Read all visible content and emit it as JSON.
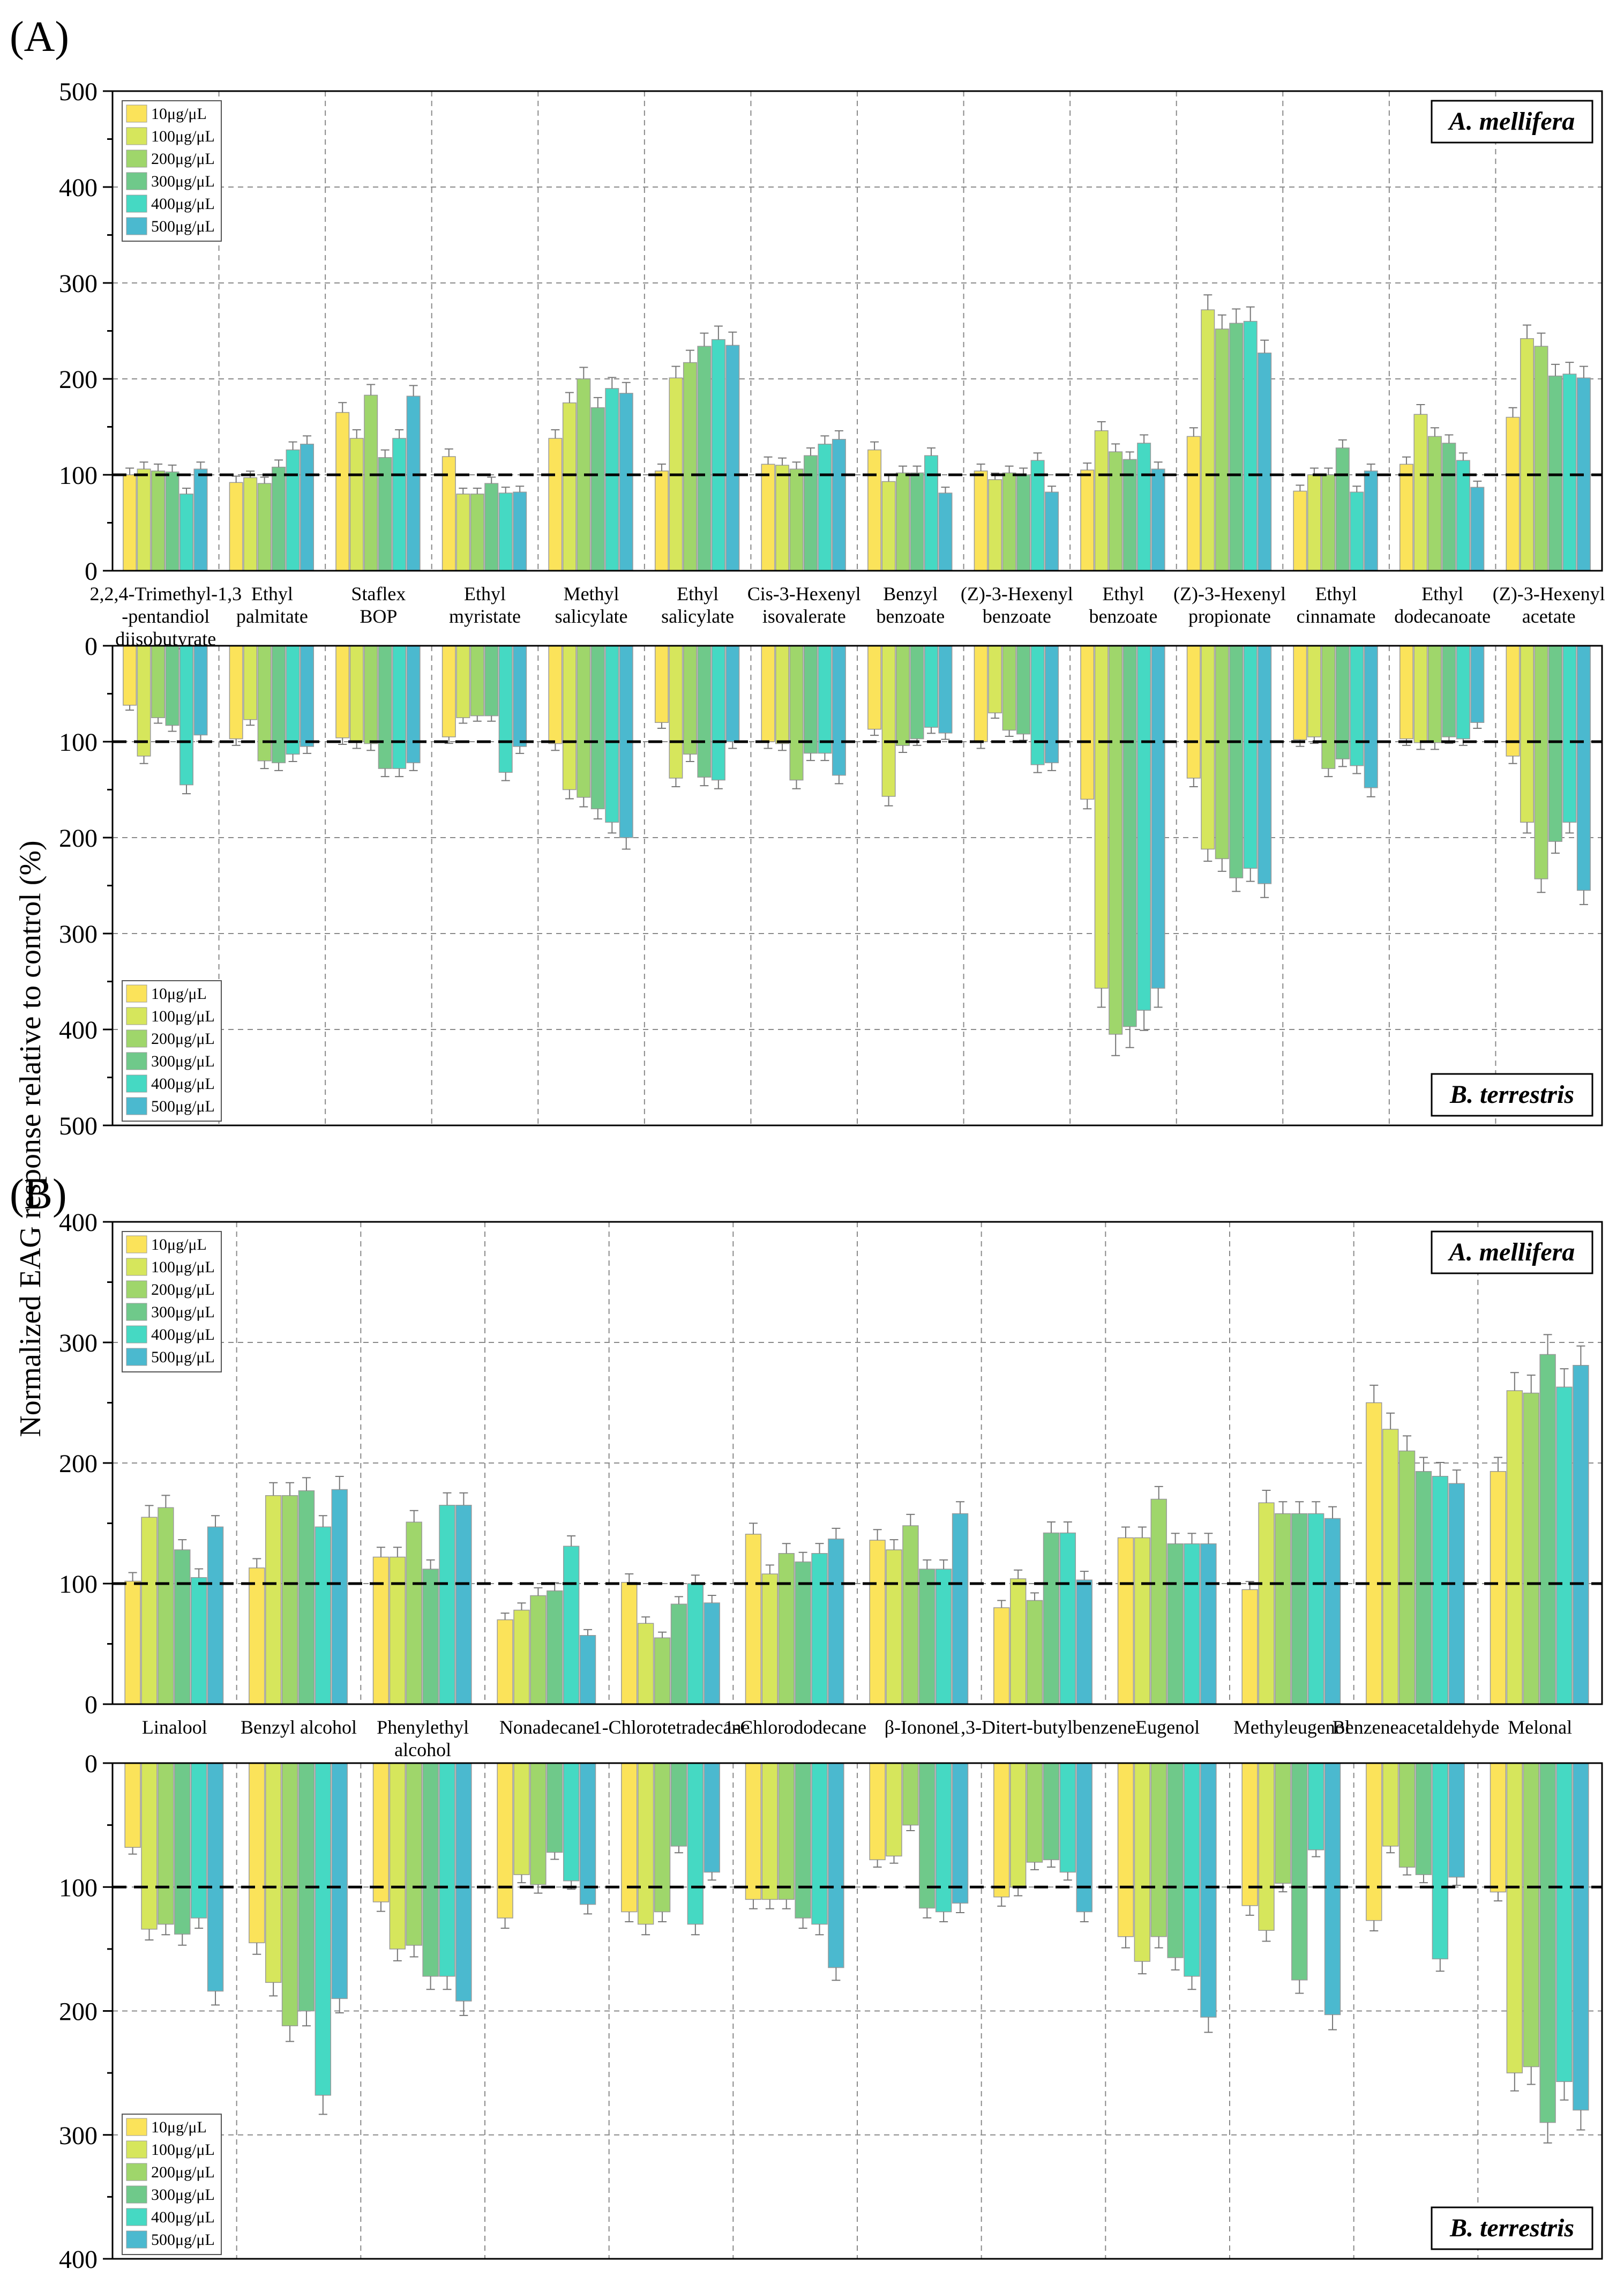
{
  "figure": {
    "ylabel": "Normalized EAG response relative to control (%)",
    "series": [
      "10μg/μL",
      "100μg/μL",
      "200μg/μL",
      "300μg/μL",
      "400μg/μL",
      "500μg/μL"
    ],
    "colors": [
      "#fbe35a",
      "#d6e65c",
      "#9fd66b",
      "#6fc98a",
      "#45d9c3",
      "#4bb9cf"
    ],
    "reference_line": 100
  },
  "chart_data": [
    {
      "type": "bar",
      "panel": "(A)",
      "species": "A. mellifera",
      "orientation": "up",
      "ylim": [
        0,
        500
      ],
      "yticks": [
        0,
        100,
        200,
        300,
        400,
        500
      ],
      "categories": [
        "2,2,4-Trimethyl-1,3\n-pentandiol\ndiisobutyrate",
        "Ethyl\npalmitate",
        "Staflex\nBOP",
        "Ethyl\nmyristate",
        "Methyl\nsalicylate",
        "Ethyl\nsalicylate",
        "Cis-3-Hexenyl\nisovalerate",
        "Benzyl\nbenzoate",
        "(Z)-3-Hexenyl\nbenzoate",
        "Ethyl\nbenzoate",
        "(Z)-3-Hexenyl\npropionate",
        "Ethyl\ncinnamate",
        "Ethyl\ndodecanoate",
        "(Z)-3-Hexenyl\nacetate"
      ],
      "series": [
        {
          "name": "10μg/μL",
          "values": [
            100,
            92,
            165,
            119,
            138,
            104,
            111,
            126,
            104,
            105,
            140,
            83,
            111,
            160
          ]
        },
        {
          "name": "100μg/μL",
          "values": [
            106,
            97,
            138,
            80,
            175,
            201,
            110,
            93,
            95,
            146,
            272,
            100,
            163,
            242
          ]
        },
        {
          "name": "200μg/μL",
          "values": [
            104,
            91,
            183,
            80,
            200,
            217,
            106,
            102,
            102,
            124,
            252,
            100,
            140,
            234
          ]
        },
        {
          "name": "300μg/μL",
          "values": [
            103,
            108,
            118,
            91,
            170,
            234,
            120,
            102,
            100,
            116,
            258,
            128,
            133,
            203
          ]
        },
        {
          "name": "400μg/μL",
          "values": [
            80,
            126,
            138,
            81,
            190,
            241,
            132,
            120,
            115,
            133,
            260,
            82,
            115,
            205
          ]
        },
        {
          "name": "500μg/μL",
          "values": [
            106,
            132,
            182,
            82,
            185,
            235,
            137,
            81,
            82,
            106,
            227,
            104,
            87,
            201
          ]
        }
      ]
    },
    {
      "type": "bar",
      "panel": "(A)",
      "species": "B. terrestris",
      "orientation": "down",
      "ylim": [
        0,
        500
      ],
      "yticks": [
        0,
        100,
        200,
        300,
        400,
        500
      ],
      "categories": [
        "2,2,4-Trimethyl-1,3\n-pentandiol\ndiisobutyrate",
        "Ethyl\npalmitate",
        "Staflex\nBOP",
        "Ethyl\nmyristate",
        "Methyl\nsalicylate",
        "Ethyl\nsalicylate",
        "Cis-3-Hexenyl\nisovalerate",
        "Benzyl\nbenzoate",
        "(Z)-3-Hexenyl\nbenzoate",
        "Ethyl\nbenzoate",
        "(Z)-3-Hexenyl\npropionate",
        "Ethyl\ncinnamate",
        "Ethyl\ndodecanoate",
        "(Z)-3-Hexenyl\nacetate"
      ],
      "series": [
        {
          "name": "10μg/μL",
          "values": [
            62,
            97,
            96,
            95,
            102,
            80,
            100,
            87,
            100,
            160,
            138,
            98,
            97,
            115
          ]
        },
        {
          "name": "100μg/μL",
          "values": [
            115,
            77,
            100,
            75,
            150,
            138,
            102,
            157,
            70,
            357,
            212,
            95,
            101,
            184
          ]
        },
        {
          "name": "200μg/μL",
          "values": [
            75,
            120,
            102,
            73,
            158,
            113,
            140,
            104,
            88,
            405,
            222,
            128,
            101,
            243
          ]
        },
        {
          "name": "300μg/μL",
          "values": [
            83,
            122,
            128,
            73,
            170,
            137,
            112,
            97,
            92,
            397,
            242,
            118,
            95,
            204
          ]
        },
        {
          "name": "400μg/μL",
          "values": [
            145,
            113,
            128,
            132,
            184,
            140,
            112,
            85,
            124,
            380,
            232,
            125,
            97,
            184
          ]
        },
        {
          "name": "500μg/μL",
          "values": [
            93,
            105,
            122,
            105,
            200,
            100,
            135,
            91,
            122,
            357,
            248,
            148,
            80,
            255
          ]
        }
      ]
    },
    {
      "type": "bar",
      "panel": "(B)",
      "species": "A. mellifera",
      "orientation": "up",
      "ylim": [
        0,
        400
      ],
      "yticks": [
        0,
        100,
        200,
        300,
        400
      ],
      "categories": [
        "Linalool",
        "Benzyl alcohol",
        "Phenylethyl\nalcohol",
        "Nonadecane",
        "1-Chlorotetradecane",
        "1-Chlorododecane",
        "β-Ionone",
        "1,3-Ditert-butylbenzene",
        "Eugenol",
        "Methyleugenol",
        "Benzeneacetaldehyde",
        "Melonal"
      ],
      "series": [
        {
          "name": "10μg/μL",
          "values": [
            102,
            113,
            122,
            70,
            101,
            141,
            136,
            80,
            138,
            95,
            250,
            193
          ]
        },
        {
          "name": "100μg/μL",
          "values": [
            155,
            173,
            122,
            78,
            67,
            108,
            128,
            104,
            138,
            167,
            228,
            260
          ]
        },
        {
          "name": "200μg/μL",
          "values": [
            163,
            173,
            151,
            90,
            55,
            125,
            148,
            86,
            170,
            158,
            210,
            258
          ]
        },
        {
          "name": "300μg/μL",
          "values": [
            128,
            177,
            112,
            94,
            83,
            118,
            112,
            142,
            133,
            158,
            193,
            290
          ]
        },
        {
          "name": "400μg/μL",
          "values": [
            105,
            147,
            165,
            131,
            100,
            125,
            112,
            142,
            133,
            158,
            189,
            263
          ]
        },
        {
          "name": "500μg/μL",
          "values": [
            147,
            178,
            165,
            57,
            84,
            137,
            158,
            103,
            133,
            154,
            183,
            281
          ]
        }
      ]
    },
    {
      "type": "bar",
      "panel": "(B)",
      "species": "B. terrestris",
      "orientation": "down",
      "ylim": [
        0,
        400
      ],
      "yticks": [
        0,
        100,
        200,
        300,
        400
      ],
      "categories": [
        "Linalool",
        "Benzyl alcohol",
        "Phenylethyl\nalcohol",
        "Nonadecane",
        "1-Chlorotetradecane",
        "1-Chlorododecane",
        "β-Ionone",
        "1,3-Ditert-butylbenzene",
        "Eugenol",
        "Methyleugenol",
        "Benzeneacetaldehyde",
        "Melonal"
      ],
      "series": [
        {
          "name": "10μg/μL",
          "values": [
            68,
            145,
            112,
            125,
            120,
            110,
            78,
            108,
            140,
            115,
            127,
            104
          ]
        },
        {
          "name": "100μg/μL",
          "values": [
            134,
            177,
            150,
            90,
            130,
            110,
            75,
            100,
            160,
            135,
            67,
            250
          ]
        },
        {
          "name": "200μg/μL",
          "values": [
            130,
            212,
            147,
            98,
            120,
            110,
            50,
            80,
            140,
            97,
            84,
            245
          ]
        },
        {
          "name": "300μg/μL",
          "values": [
            138,
            200,
            172,
            72,
            67,
            125,
            117,
            78,
            157,
            175,
            90,
            290
          ]
        },
        {
          "name": "400μg/μL",
          "values": [
            125,
            268,
            172,
            95,
            130,
            130,
            120,
            88,
            172,
            70,
            158,
            257
          ]
        },
        {
          "name": "500μg/μL",
          "values": [
            184,
            190,
            192,
            114,
            88,
            165,
            113,
            120,
            205,
            203,
            92,
            280
          ]
        }
      ]
    }
  ],
  "panels": [
    {
      "label": "(A)"
    },
    {
      "label": "(B)"
    }
  ]
}
